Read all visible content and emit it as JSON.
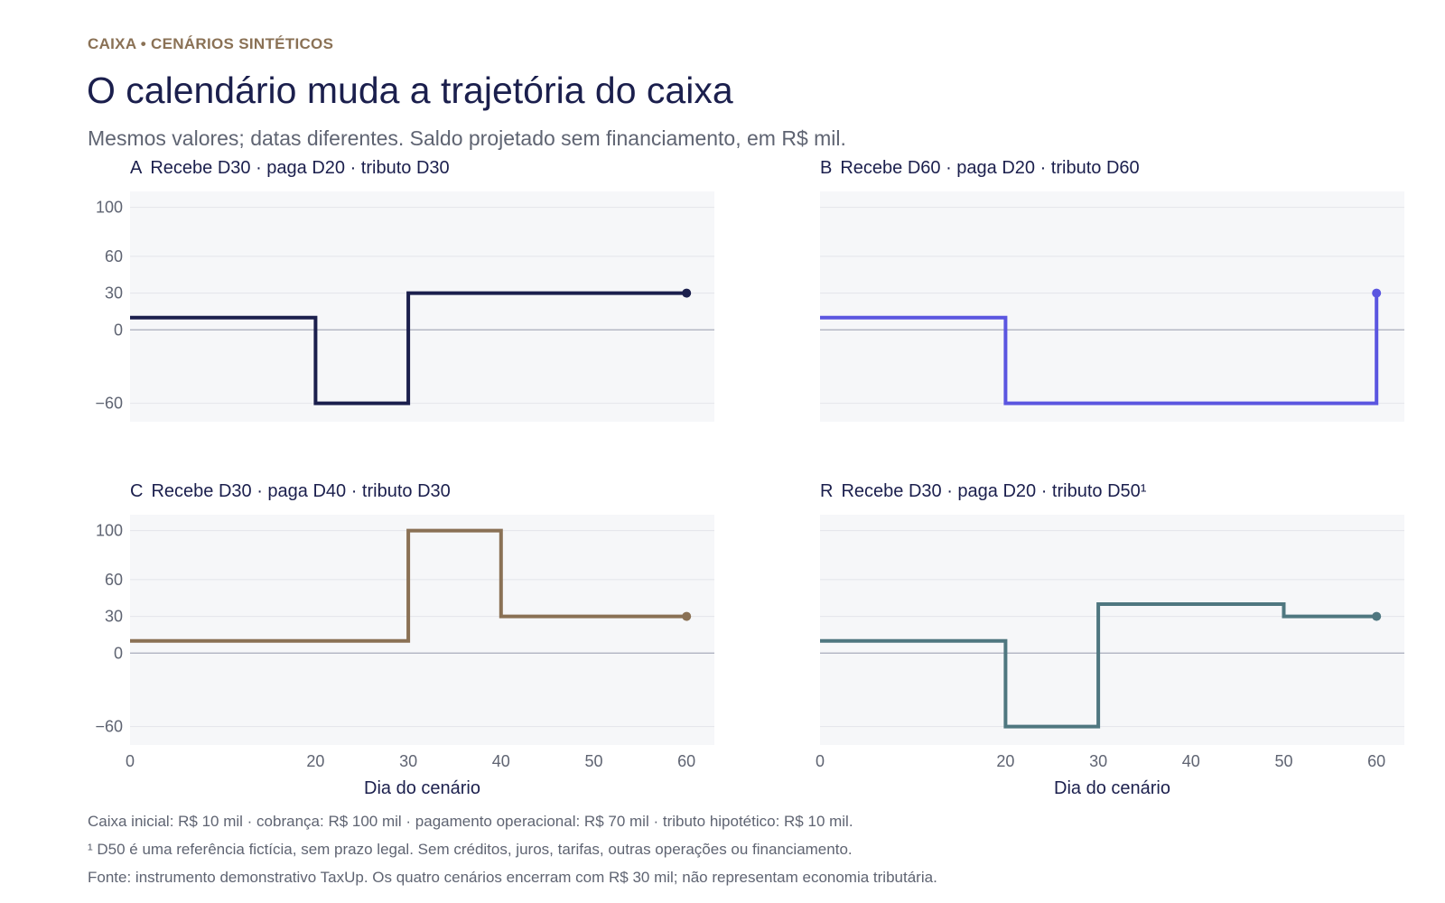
{
  "header": {
    "eyebrow": "CAIXA • CENÁRIOS SINTÉTICOS",
    "title": "O calendário muda a trajetória do caixa",
    "subtitle": "Mesmos valores; datas diferentes. Saldo projetado sem financiamento, em R$ mil."
  },
  "footnotes": {
    "line1": "Caixa inicial: R$ 10 mil · cobrança: R$ 100 mil · pagamento operacional: R$ 70 mil · tributo hipotético: R$ 10 mil.",
    "line2": "¹ D50 é uma referência fictícia, sem prazo legal. Sem créditos, juros, tarifas, outras operações ou financiamento.",
    "line3": "Fonte: instrumento demonstrativo TaxUp. Os quatro cenários encerram com R$ 30 mil; não representam economia tributária."
  },
  "chart_data": [
    {
      "type": "line",
      "step": true,
      "panel": "top-left",
      "title_letter": "A",
      "title": "Recebe D30 · paga D20 · tributo D30",
      "color": "#1b1f4d",
      "x": [
        0,
        20,
        30,
        60
      ],
      "y": [
        10,
        -60,
        30,
        30
      ],
      "end_marker": [
        60,
        30
      ],
      "xlim": [
        0,
        63
      ],
      "ylim": [
        -75,
        113
      ],
      "yticks": [
        100,
        60,
        30,
        0,
        -60
      ],
      "xticks": [],
      "xlabel": "",
      "show_yticks": true,
      "grid": true
    },
    {
      "type": "line",
      "step": true,
      "panel": "top-right",
      "title_letter": "B",
      "title": "Recebe D60 · paga D20 · tributo D60",
      "color": "#5b56e0",
      "x": [
        0,
        20,
        60
      ],
      "y": [
        10,
        -60,
        30
      ],
      "end_marker": [
        60,
        30
      ],
      "xlim": [
        0,
        63
      ],
      "ylim": [
        -75,
        113
      ],
      "yticks": [
        100,
        60,
        30,
        0,
        -60
      ],
      "xticks": [],
      "xlabel": "",
      "show_yticks": false,
      "grid": true
    },
    {
      "type": "line",
      "step": true,
      "panel": "bottom-left",
      "title_letter": "C",
      "title": "Recebe D30 · paga D40 · tributo D30",
      "color": "#8a7155",
      "x": [
        0,
        30,
        40,
        60
      ],
      "y": [
        10,
        100,
        30,
        30
      ],
      "end_marker": [
        60,
        30
      ],
      "xlim": [
        0,
        63
      ],
      "ylim": [
        -75,
        113
      ],
      "yticks": [
        100,
        60,
        30,
        0,
        -60
      ],
      "xticks": [
        0,
        20,
        30,
        40,
        50,
        60
      ],
      "xlabel": "Dia do cenário",
      "show_yticks": true,
      "grid": true
    },
    {
      "type": "line",
      "step": true,
      "panel": "bottom-right",
      "title_letter": "R",
      "title": "Recebe D30 · paga D20 · tributo D50¹",
      "color": "#4f7780",
      "x": [
        0,
        20,
        30,
        50,
        60
      ],
      "y": [
        10,
        -60,
        40,
        30,
        30
      ],
      "end_marker": [
        60,
        30
      ],
      "xlim": [
        0,
        63
      ],
      "ylim": [
        -75,
        113
      ],
      "yticks": [
        100,
        60,
        30,
        0,
        -60
      ],
      "xticks": [
        0,
        20,
        30,
        40,
        50,
        60
      ],
      "xlabel": "Dia do cenário",
      "show_yticks": false,
      "grid": true
    }
  ]
}
